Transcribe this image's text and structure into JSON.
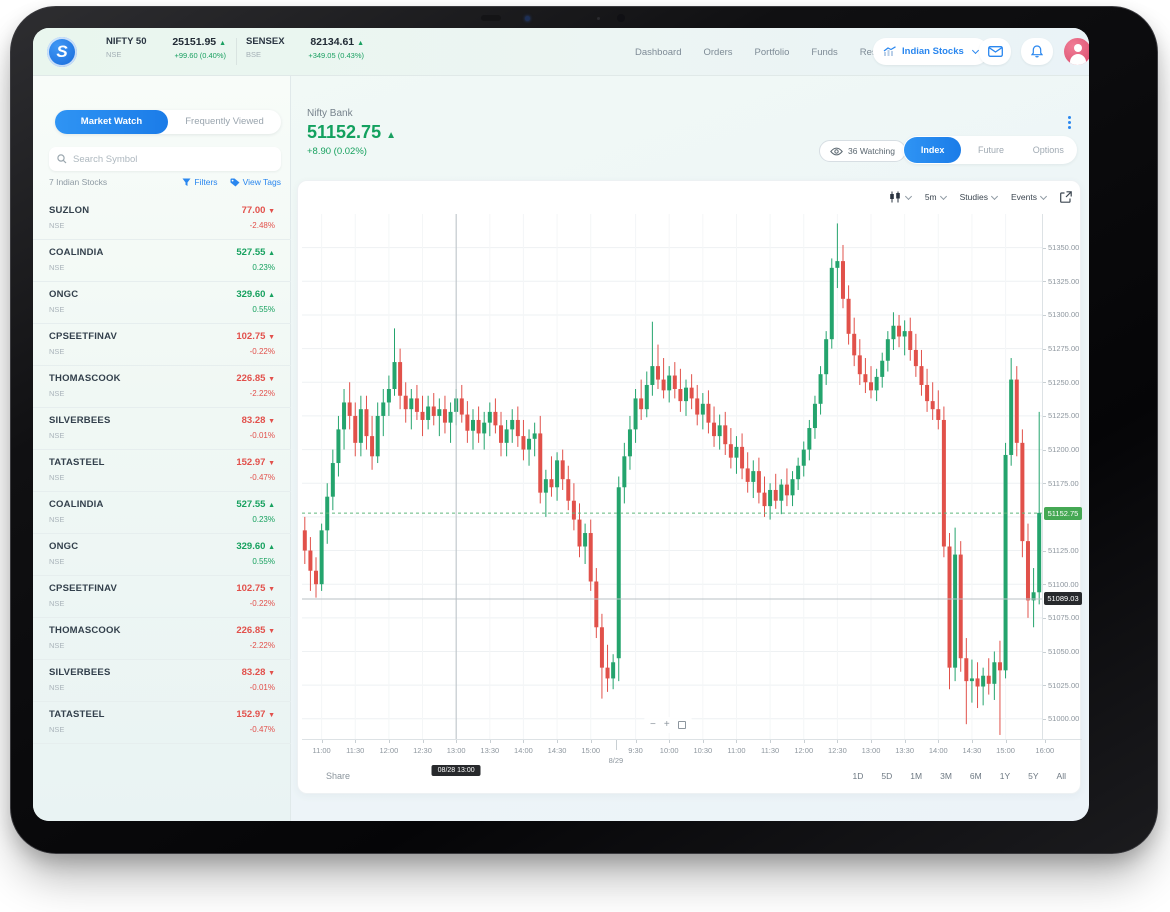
{
  "header": {
    "indices": [
      {
        "name": "NIFTY 50",
        "exchange": "NSE",
        "value": "25151.95",
        "change": "+99.60 (0.40%)",
        "direction": "up"
      },
      {
        "name": "SENSEX",
        "exchange": "BSE",
        "value": "82134.61",
        "change": "+349.05 (0.43%)",
        "direction": "up"
      }
    ],
    "nav": [
      "Dashboard",
      "Orders",
      "Portfolio",
      "Funds",
      "Research"
    ],
    "market_selector": {
      "label": "Indian Stocks"
    }
  },
  "sidebar": {
    "tabs": [
      {
        "label": "Market Watch",
        "active": true
      },
      {
        "label": "Frequently Viewed",
        "active": false
      }
    ],
    "search_placeholder": "Search Symbol",
    "count_label": "7 Indian Stocks",
    "filters_label": "Filters",
    "view_tags_label": "View Tags",
    "stocks": [
      {
        "symbol": "SUZLON",
        "exchange": "NSE",
        "price": "77.00",
        "change": "-2.48%",
        "dir": "down"
      },
      {
        "symbol": "COALINDIA",
        "exchange": "NSE",
        "price": "527.55",
        "change": "0.23%",
        "dir": "up"
      },
      {
        "symbol": "ONGC",
        "exchange": "NSE",
        "price": "329.60",
        "change": "0.55%",
        "dir": "up"
      },
      {
        "symbol": "CPSEETFINAV",
        "exchange": "NSE",
        "price": "102.75",
        "change": "-0.22%",
        "dir": "down"
      },
      {
        "symbol": "THOMASCOOK",
        "exchange": "NSE",
        "price": "226.85",
        "change": "-2.22%",
        "dir": "down"
      },
      {
        "symbol": "SILVERBEES",
        "exchange": "NSE",
        "price": "83.28",
        "change": "-0.01%",
        "dir": "down"
      },
      {
        "symbol": "TATASTEEL",
        "exchange": "NSE",
        "price": "152.97",
        "change": "-0.47%",
        "dir": "down"
      },
      {
        "symbol": "COALINDIA",
        "exchange": "NSE",
        "price": "527.55",
        "change": "0.23%",
        "dir": "up"
      },
      {
        "symbol": "ONGC",
        "exchange": "NSE",
        "price": "329.60",
        "change": "0.55%",
        "dir": "up"
      },
      {
        "symbol": "CPSEETFINAV",
        "exchange": "NSE",
        "price": "102.75",
        "change": "-0.22%",
        "dir": "down"
      },
      {
        "symbol": "THOMASCOOK",
        "exchange": "NSE",
        "price": "226.85",
        "change": "-2.22%",
        "dir": "down"
      },
      {
        "symbol": "SILVERBEES",
        "exchange": "NSE",
        "price": "83.28",
        "change": "-0.01%",
        "dir": "down"
      },
      {
        "symbol": "TATASTEEL",
        "exchange": "NSE",
        "price": "152.97",
        "change": "-0.47%",
        "dir": "down"
      }
    ]
  },
  "instrument": {
    "name": "Nifty Bank",
    "price": "51152.75",
    "change": "+8.90 (0.02%)",
    "watching_label": "36 Watching",
    "tabs": [
      {
        "label": "Index",
        "active": true
      },
      {
        "label": "Future",
        "active": false
      },
      {
        "label": "Options",
        "active": false
      }
    ]
  },
  "chart_toolbar": {
    "interval": "5m",
    "studies": "Studies",
    "events": "Events"
  },
  "zoom_controls": {
    "minus": "−",
    "plus": "+"
  },
  "footer": {
    "share": "Share",
    "ranges": [
      "1D",
      "5D",
      "1M",
      "3M",
      "6M",
      "1Y",
      "5Y",
      "All"
    ]
  },
  "chart_data": {
    "type": "candlestick",
    "title": "Nifty Bank 5m intraday",
    "ymin": 50985,
    "ymax": 51375,
    "grid": true,
    "colors": {
      "up": "#24a46d",
      "down": "#e1514a",
      "grid": "#eef1f3",
      "vgrid": "#f4f6f7",
      "dashed": "#5fb67c",
      "crosshair": "#b9c0c5"
    },
    "price_gridlines": [
      51000,
      51025,
      51050,
      51075,
      51100,
      51125,
      51150,
      51175,
      51200,
      51225,
      51250,
      51275,
      51300,
      51325,
      51350
    ],
    "price_labels": [
      {
        "p": 51350,
        "text": "51350.00"
      },
      {
        "p": 51325,
        "text": "51325.00"
      },
      {
        "p": 51300,
        "text": "51300.00"
      },
      {
        "p": 51275,
        "text": "51275.00"
      },
      {
        "p": 51250,
        "text": "51250.00"
      },
      {
        "p": 51225,
        "text": "51225.00"
      },
      {
        "p": 51200,
        "text": "51200.00"
      },
      {
        "p": 51175,
        "text": "51175.00"
      },
      {
        "p": 51125,
        "text": "51125.00"
      },
      {
        "p": 51100,
        "text": "51100.00"
      },
      {
        "p": 51075,
        "text": "51075.00"
      },
      {
        "p": 51050,
        "text": "51050.00"
      },
      {
        "p": 51025,
        "text": "51025.00"
      },
      {
        "p": 51000,
        "text": "51000.00"
      }
    ],
    "time_labels": [
      {
        "t": "11:00",
        "i": 3
      },
      {
        "t": "11:30",
        "i": 9
      },
      {
        "t": "12:00",
        "i": 15
      },
      {
        "t": "12:30",
        "i": 21
      },
      {
        "t": "13:00",
        "i": 27
      },
      {
        "t": "13:30",
        "i": 33
      },
      {
        "t": "14:00",
        "i": 39
      },
      {
        "t": "14:30",
        "i": 45
      },
      {
        "t": "15:00",
        "i": 51
      },
      {
        "t": "8/29",
        "i": 56,
        "session": true
      },
      {
        "t": "9:30",
        "i": 59
      },
      {
        "t": "10:00",
        "i": 65
      },
      {
        "t": "10:30",
        "i": 71
      },
      {
        "t": "11:00",
        "i": 77
      },
      {
        "t": "11:30",
        "i": 83
      },
      {
        "t": "12:00",
        "i": 89
      },
      {
        "t": "12:30",
        "i": 95
      },
      {
        "t": "13:00",
        "i": 101
      },
      {
        "t": "13:30",
        "i": 107
      },
      {
        "t": "14:00",
        "i": 113
      },
      {
        "t": "14:30",
        "i": 119
      },
      {
        "t": "15:00",
        "i": 125
      },
      {
        "t": "16:00",
        "i": 132
      }
    ],
    "last_price": {
      "value": 51152.75,
      "text": "51152.75"
    },
    "crosshair": {
      "price": 51089.03,
      "text": "51089.03",
      "idx": 27,
      "time_text": "08/28 13:00"
    },
    "candles": [
      [
        51140,
        51150,
        51115,
        51125
      ],
      [
        51125,
        51135,
        51095,
        51110
      ],
      [
        51110,
        51120,
        51090,
        51100
      ],
      [
        51100,
        51145,
        51095,
        51140
      ],
      [
        51140,
        51175,
        51130,
        51165
      ],
      [
        51165,
        51200,
        51155,
        51190
      ],
      [
        51190,
        51225,
        51180,
        51215
      ],
      [
        51215,
        51245,
        51200,
        51235
      ],
      [
        51235,
        51250,
        51215,
        51225
      ],
      [
        51225,
        51235,
        51195,
        51205
      ],
      [
        51205,
        51240,
        51195,
        51230
      ],
      [
        51230,
        51240,
        51200,
        51210
      ],
      [
        51210,
        51225,
        51185,
        51195
      ],
      [
        51195,
        51235,
        51190,
        51225
      ],
      [
        51225,
        51245,
        51210,
        51235
      ],
      [
        51235,
        51255,
        51225,
        51245
      ],
      [
        51245,
        51290,
        51240,
        51265
      ],
      [
        51265,
        51275,
        51230,
        51240
      ],
      [
        51240,
        51250,
        51220,
        51230
      ],
      [
        51230,
        51245,
        51215,
        51238
      ],
      [
        51238,
        51248,
        51222,
        51228
      ],
      [
        51228,
        51240,
        51210,
        51222
      ],
      [
        51222,
        51240,
        51215,
        51232
      ],
      [
        51232,
        51242,
        51218,
        51225
      ],
      [
        51225,
        51238,
        51210,
        51230
      ],
      [
        51230,
        51240,
        51212,
        51220
      ],
      [
        51220,
        51235,
        51205,
        51228
      ],
      [
        51228,
        51245,
        51218,
        51238
      ],
      [
        51238,
        51248,
        51220,
        51226
      ],
      [
        51226,
        51236,
        51205,
        51214
      ],
      [
        51214,
        51230,
        51200,
        51222
      ],
      [
        51222,
        51232,
        51205,
        51212
      ],
      [
        51212,
        51228,
        51200,
        51220
      ],
      [
        51220,
        51235,
        51210,
        51228
      ],
      [
        51228,
        51238,
        51212,
        51218
      ],
      [
        51218,
        51228,
        51195,
        51205
      ],
      [
        51205,
        51222,
        51195,
        51215
      ],
      [
        51215,
        51230,
        51205,
        51222
      ],
      [
        51222,
        51232,
        51202,
        51210
      ],
      [
        51210,
        51222,
        51192,
        51200
      ],
      [
        51200,
        51215,
        51188,
        51208
      ],
      [
        51208,
        51220,
        51195,
        51212
      ],
      [
        51212,
        51225,
        51160,
        51168
      ],
      [
        51168,
        51185,
        51150,
        51178
      ],
      [
        51178,
        51195,
        51165,
        51172
      ],
      [
        51172,
        51198,
        51162,
        51192
      ],
      [
        51192,
        51200,
        51170,
        51178
      ],
      [
        51178,
        51188,
        51155,
        51162
      ],
      [
        51162,
        51175,
        51140,
        51148
      ],
      [
        51148,
        51160,
        51120,
        51128
      ],
      [
        51128,
        51145,
        51115,
        51138
      ],
      [
        51138,
        51148,
        51095,
        51102
      ],
      [
        51102,
        51112,
        51060,
        51068
      ],
      [
        51068,
        51078,
        51015,
        51038
      ],
      [
        51038,
        51055,
        51020,
        51030
      ],
      [
        51030,
        51048,
        51022,
        51042
      ],
      [
        51045,
        51180,
        51028,
        51172
      ],
      [
        51172,
        51205,
        51160,
        51195
      ],
      [
        51195,
        51225,
        51185,
        51215
      ],
      [
        51215,
        51245,
        51205,
        51238
      ],
      [
        51238,
        51252,
        51222,
        51230
      ],
      [
        51230,
        51258,
        51224,
        51248
      ],
      [
        51248,
        51295,
        51240,
        51262
      ],
      [
        51262,
        51278,
        51245,
        51252
      ],
      [
        51252,
        51268,
        51238,
        51244
      ],
      [
        51244,
        51262,
        51235,
        51255
      ],
      [
        51255,
        51265,
        51238,
        51245
      ],
      [
        51245,
        51260,
        51228,
        51236
      ],
      [
        51236,
        51252,
        51225,
        51246
      ],
      [
        51246,
        51256,
        51230,
        51238
      ],
      [
        51238,
        51248,
        51218,
        51226
      ],
      [
        51226,
        51242,
        51215,
        51234
      ],
      [
        51234,
        51244,
        51212,
        51220
      ],
      [
        51220,
        51232,
        51202,
        51210
      ],
      [
        51210,
        51226,
        51200,
        51218
      ],
      [
        51218,
        51228,
        51196,
        51204
      ],
      [
        51204,
        51216,
        51186,
        51194
      ],
      [
        51194,
        51210,
        51182,
        51202
      ],
      [
        51202,
        51212,
        51178,
        51186
      ],
      [
        51186,
        51198,
        51168,
        51176
      ],
      [
        51176,
        51192,
        51164,
        51184
      ],
      [
        51184,
        51194,
        51160,
        51168
      ],
      [
        51168,
        51180,
        51150,
        51158
      ],
      [
        51158,
        51175,
        51148,
        51170
      ],
      [
        51170,
        51182,
        51156,
        51162
      ],
      [
        51162,
        51178,
        51152,
        51174
      ],
      [
        51174,
        51186,
        51158,
        51166
      ],
      [
        51166,
        51184,
        51158,
        51178
      ],
      [
        51178,
        51194,
        51170,
        51188
      ],
      [
        51188,
        51206,
        51180,
        51200
      ],
      [
        51200,
        51222,
        51192,
        51216
      ],
      [
        51216,
        51240,
        51208,
        51234
      ],
      [
        51234,
        51262,
        51226,
        51256
      ],
      [
        51256,
        51288,
        51248,
        51282
      ],
      [
        51282,
        51342,
        51275,
        51335
      ],
      [
        51335,
        51368,
        51320,
        51340
      ],
      [
        51340,
        51352,
        51305,
        51312
      ],
      [
        51312,
        51322,
        51278,
        51286
      ],
      [
        51286,
        51298,
        51262,
        51270
      ],
      [
        51270,
        51282,
        51248,
        51256
      ],
      [
        51256,
        51268,
        51242,
        51250
      ],
      [
        51250,
        51262,
        51238,
        51244
      ],
      [
        51244,
        51260,
        51236,
        51254
      ],
      [
        51254,
        51272,
        51246,
        51266
      ],
      [
        51266,
        51288,
        51258,
        51282
      ],
      [
        51282,
        51302,
        51274,
        51292
      ],
      [
        51292,
        51300,
        51276,
        51284
      ],
      [
        51284,
        51296,
        51270,
        51288
      ],
      [
        51288,
        51298,
        51266,
        51274
      ],
      [
        51274,
        51286,
        51254,
        51262
      ],
      [
        51262,
        51274,
        51240,
        51248
      ],
      [
        51248,
        51260,
        51228,
        51236
      ],
      [
        51236,
        51250,
        51222,
        51230
      ],
      [
        51230,
        51244,
        51215,
        51222
      ],
      [
        51222,
        51232,
        51120,
        51128
      ],
      [
        51128,
        51138,
        51022,
        51038
      ],
      [
        51038,
        51142,
        51028,
        51122
      ],
      [
        51122,
        51132,
        51035,
        51045
      ],
      [
        51045,
        51060,
        50996,
        51028
      ],
      [
        51028,
        51044,
        51012,
        51030
      ],
      [
        51030,
        51042,
        51008,
        51024
      ],
      [
        51024,
        51038,
        51010,
        51032
      ],
      [
        51032,
        51045,
        51018,
        51026
      ],
      [
        51026,
        51050,
        51014,
        51042
      ],
      [
        51042,
        51058,
        50988,
        51036
      ],
      [
        51036,
        51205,
        51030,
        51196
      ],
      [
        51196,
        51268,
        51188,
        51252
      ],
      [
        51252,
        51262,
        51195,
        51205
      ],
      [
        51205,
        51215,
        51120,
        51132
      ],
      [
        51132,
        51145,
        51075,
        51088
      ],
      [
        51088,
        51112,
        51068,
        51094
      ],
      [
        51094,
        51228,
        51085,
        51153
      ]
    ]
  }
}
